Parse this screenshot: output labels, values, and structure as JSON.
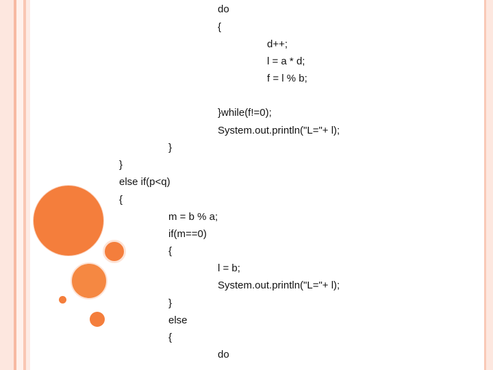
{
  "code_lines": [
    "do",
    "{",
    "d++;",
    "l = a * d;",
    "f = l % b;",
    "}while(f!=0);",
    "System.out.println(\"L=\"+ l);",
    "}",
    "}",
    "else if(p<q)",
    "{",
    "m = b % a;",
    "if(m==0)",
    "{",
    "l = b;",
    "System.out.println(\"L=\"+ l);",
    "}",
    "else",
    "{",
    "do"
  ],
  "accent_color": "#f47e3c"
}
